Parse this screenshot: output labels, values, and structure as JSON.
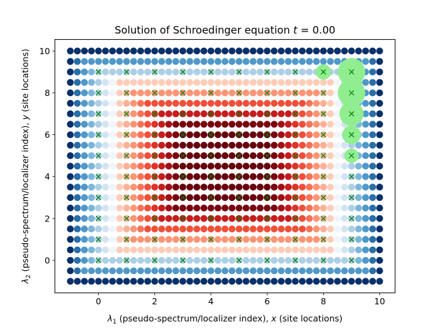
{
  "chart_data": {
    "type": "scatter",
    "title": "Solution of Schroedinger equation t = 0.00",
    "title_parts": {
      "prefix": "Solution of Schroedinger equation ",
      "variable": "t",
      "suffix": " = 0.00"
    },
    "xlabel": "λ1 (pseudo-spectrum/localizer index), x (site locations)",
    "xlabel_parts": {
      "symbol": "λ",
      "subscript": "1",
      "rest": " (pseudo-spectrum/localizer index), ",
      "variable": "x",
      "tail": " (site locations)"
    },
    "ylabel": "λ2 (pseudo-spectrum/localizer index), y (site locations)",
    "ylabel_parts": {
      "symbol": "λ",
      "subscript": "2",
      "rest": " (pseudo-spectrum/localizer index), ",
      "variable": "y",
      "tail": " (site locations)"
    },
    "xlim": [
      -1.55,
      10.55
    ],
    "ylim": [
      -1.55,
      10.55
    ],
    "xticks": [
      0,
      2,
      4,
      6,
      8,
      10
    ],
    "yticks": [
      0,
      2,
      4,
      6,
      8,
      10
    ],
    "grid": false,
    "pseudospectrum_grid": {
      "x_min": -1.0,
      "x_max": 10.0,
      "y_min": -1.0,
      "y_max": 10.0,
      "x_step": 0.25,
      "y_step": 0.5,
      "blue_colormap": "Blues",
      "red_colormap": "Reds",
      "red_region_x": [
        0.75,
        8.25
      ],
      "red_region_y": [
        0.5,
        8.5
      ]
    },
    "lattice_sites": {
      "marker": "x",
      "color": "#007f00",
      "points": [
        [
          0,
          0
        ],
        [
          0,
          1
        ],
        [
          0,
          2
        ],
        [
          0,
          3
        ],
        [
          0,
          4
        ],
        [
          0,
          5
        ],
        [
          0,
          6
        ],
        [
          0,
          7
        ],
        [
          0,
          8
        ],
        [
          0,
          9
        ],
        [
          1,
          0
        ],
        [
          1,
          1
        ],
        [
          1,
          2
        ],
        [
          1,
          3
        ],
        [
          1,
          4
        ],
        [
          1,
          5
        ],
        [
          1,
          6
        ],
        [
          1,
          7
        ],
        [
          1,
          8
        ],
        [
          1,
          9
        ],
        [
          2,
          0
        ],
        [
          2,
          1
        ],
        [
          2,
          2
        ],
        [
          2,
          3
        ],
        [
          2,
          4
        ],
        [
          2,
          5
        ],
        [
          2,
          6
        ],
        [
          2,
          7
        ],
        [
          2,
          8
        ],
        [
          2,
          9
        ],
        [
          3,
          0
        ],
        [
          3,
          1
        ],
        [
          3,
          2
        ],
        [
          3,
          3
        ],
        [
          3,
          4
        ],
        [
          3,
          5
        ],
        [
          3,
          6
        ],
        [
          3,
          7
        ],
        [
          3,
          8
        ],
        [
          3,
          9
        ],
        [
          4,
          0
        ],
        [
          4,
          1
        ],
        [
          4,
          2
        ],
        [
          4,
          3
        ],
        [
          4,
          4
        ],
        [
          4,
          5
        ],
        [
          4,
          6
        ],
        [
          4,
          7
        ],
        [
          4,
          8
        ],
        [
          4,
          9
        ],
        [
          5,
          0
        ],
        [
          5,
          1
        ],
        [
          5,
          2
        ],
        [
          5,
          3
        ],
        [
          5,
          4
        ],
        [
          5,
          5
        ],
        [
          5,
          6
        ],
        [
          5,
          7
        ],
        [
          5,
          8
        ],
        [
          5,
          9
        ],
        [
          6,
          0
        ],
        [
          6,
          1
        ],
        [
          6,
          2
        ],
        [
          6,
          3
        ],
        [
          6,
          4
        ],
        [
          6,
          5
        ],
        [
          6,
          6
        ],
        [
          6,
          7
        ],
        [
          6,
          8
        ],
        [
          6,
          9
        ],
        [
          7,
          0
        ],
        [
          7,
          1
        ],
        [
          7,
          2
        ],
        [
          7,
          3
        ],
        [
          7,
          4
        ],
        [
          7,
          5
        ],
        [
          7,
          6
        ],
        [
          7,
          7
        ],
        [
          7,
          8
        ],
        [
          7,
          9
        ],
        [
          8,
          0
        ],
        [
          8,
          1
        ],
        [
          8,
          2
        ],
        [
          8,
          3
        ],
        [
          8,
          4
        ],
        [
          8,
          5
        ],
        [
          8,
          6
        ],
        [
          8,
          7
        ],
        [
          8,
          8
        ],
        [
          8,
          9
        ],
        [
          9,
          0
        ],
        [
          9,
          1
        ],
        [
          9,
          2
        ],
        [
          9,
          3
        ],
        [
          9,
          4
        ],
        [
          9,
          5
        ],
        [
          9,
          6
        ],
        [
          9,
          7
        ],
        [
          9,
          8
        ],
        [
          9,
          9
        ]
      ]
    },
    "wavefunction": {
      "color": "#90ee90",
      "points": [
        {
          "x": 8,
          "y": 9,
          "amplitude": 0.45
        },
        {
          "x": 9,
          "y": 9,
          "amplitude": 1.0
        },
        {
          "x": 9,
          "y": 8,
          "amplitude": 1.0
        },
        {
          "x": 9,
          "y": 7,
          "amplitude": 0.85
        },
        {
          "x": 9,
          "y": 6,
          "amplitude": 0.6
        },
        {
          "x": 9,
          "y": 5,
          "amplitude": 0.4
        }
      ]
    }
  }
}
